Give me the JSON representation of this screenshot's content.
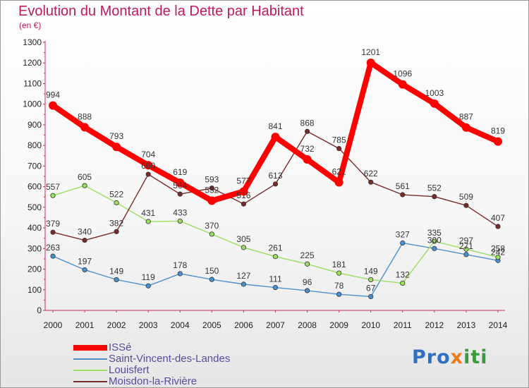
{
  "header": {
    "title": "Evolution du Montant de la Dette par Habitant",
    "unit": "(en €)"
  },
  "logo": {
    "text": "Proxiti"
  },
  "chart_data": {
    "type": "line",
    "title": "Evolution du Montant de la Dette par Habitant",
    "subtitle": "(en €)",
    "xlabel": "",
    "ylabel": "",
    "x": [
      "2000",
      "2001",
      "2002",
      "2003",
      "2004",
      "2005",
      "2006",
      "2007",
      "2008",
      "2009",
      "2010",
      "2011",
      "2012",
      "2013",
      "2014"
    ],
    "ylim": [
      0,
      1300
    ],
    "yticks": [
      0,
      100,
      200,
      300,
      400,
      500,
      600,
      700,
      800,
      900,
      1000,
      1100,
      1200,
      1300
    ],
    "grid": false,
    "legend": "bottom-left",
    "series": [
      {
        "name": "ISSé",
        "color": "#ff0000",
        "values": [
          994,
          888,
          793,
          704,
          619,
          532,
          577,
          841,
          732,
          621,
          1201,
          1096,
          1003,
          887,
          819
        ]
      },
      {
        "name": "Saint-Vincent-des-Landes",
        "color": "#4a90d0",
        "values": [
          263,
          197,
          149,
          119,
          178,
          150,
          127,
          111,
          96,
          78,
          67,
          327,
          300,
          271,
          242
        ]
      },
      {
        "name": "Louisfert",
        "color": "#99e060",
        "values": [
          557,
          605,
          522,
          431,
          433,
          370,
          305,
          261,
          225,
          181,
          149,
          132,
          335,
          297,
          258
        ]
      },
      {
        "name": "Moisdon-la-Rivière",
        "color": "#7a2a2a",
        "values": [
          379,
          340,
          382,
          660,
          564,
          593,
          516,
          613,
          868,
          785,
          622,
          561,
          552,
          509,
          407
        ]
      }
    ]
  }
}
